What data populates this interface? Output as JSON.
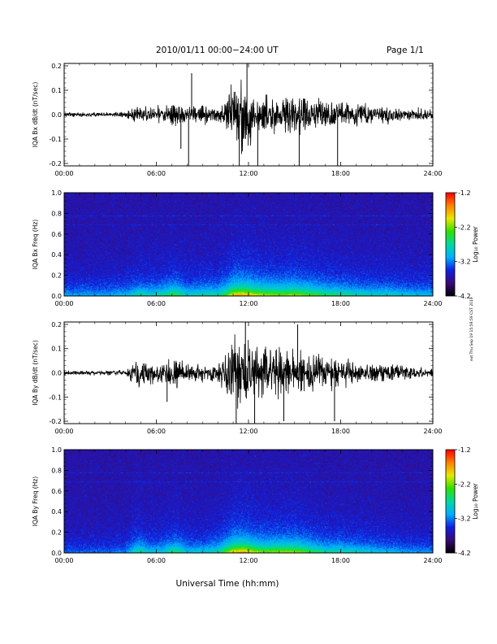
{
  "header": {
    "title": "2010/01/11  00:00−24:00 UT",
    "page": "Page 1/1"
  },
  "xaxis_title": "Universal Time (hh:mm)",
  "side_note": "ext Thu Sep 19 15:59:59 CST 2019",
  "colormap": [
    "#000000",
    "#3a0a78",
    "#1020e0",
    "#00b0ff",
    "#00d8a0",
    "#30e000",
    "#e8e800",
    "#ff8000",
    "#ff0000"
  ],
  "chart_data": [
    {
      "type": "line",
      "name": "bx-timeseries",
      "ylabel": "IQA Bx dB/dt (nT/sec)",
      "xlim": [
        0,
        24
      ],
      "ylim": [
        -0.21,
        0.21
      ],
      "x_ticks": [
        "00:00",
        "06:00",
        "12:00",
        "18:00",
        "24:00"
      ],
      "y_ticks": [
        "-0.2",
        "-0.1",
        "0.0",
        "0.1",
        "0.2"
      ],
      "y_tick_values": [
        -0.2,
        -0.1,
        0.0,
        0.1,
        0.2
      ],
      "envelope": {
        "hours": [
          0,
          2,
          4,
          4.8,
          5.5,
          6.3,
          7.2,
          8,
          9,
          10,
          10.6,
          11,
          11.5,
          12,
          12.5,
          13,
          14,
          15,
          16,
          17,
          18,
          19,
          20,
          21,
          22,
          23,
          24
        ],
        "amplitude": [
          0.012,
          0.012,
          0.018,
          0.05,
          0.04,
          0.05,
          0.08,
          0.04,
          0.05,
          0.05,
          0.09,
          0.2,
          0.21,
          0.18,
          0.14,
          0.12,
          0.11,
          0.12,
          0.1,
          0.08,
          0.07,
          0.06,
          0.05,
          0.05,
          0.04,
          0.035,
          0.03
        ]
      },
      "spikes": [
        {
          "hour": 7.6,
          "value": -0.14
        },
        {
          "hour": 8.1,
          "value": -0.22
        },
        {
          "hour": 8.3,
          "value": 0.17
        },
        {
          "hour": 11.4,
          "value": -0.22
        },
        {
          "hour": 11.9,
          "value": 0.22
        },
        {
          "hour": 12.6,
          "value": -0.22
        },
        {
          "hour": 15.3,
          "value": -0.21
        },
        {
          "hour": 17.8,
          "value": -0.21
        }
      ]
    },
    {
      "type": "heatmap",
      "name": "bx-spectrogram",
      "ylabel": "IQA Bx Freq (Hz)",
      "xlim": [
        0,
        24
      ],
      "ylim": [
        0,
        1.0
      ],
      "x_ticks": [
        "00:00",
        "06:00",
        "12:00",
        "18:00",
        "24:00"
      ],
      "y_ticks": [
        "0.0",
        "0.2",
        "0.4",
        "0.6",
        "0.8",
        "1.0"
      ],
      "y_tick_values": [
        0.0,
        0.2,
        0.4,
        0.6,
        0.8,
        1.0
      ],
      "colorbar": {
        "label": "Log₁₀ Power",
        "range": [
          -4.2,
          -1.2
        ],
        "ticks": [
          "-1.2",
          "-2.2",
          "-3.2",
          "-4.2"
        ],
        "tick_values": [
          -1.2,
          -2.2,
          -3.2,
          -4.2
        ]
      },
      "activity": {
        "hours": [
          0,
          2,
          4,
          4.8,
          5.5,
          6.3,
          7.2,
          8,
          9,
          10,
          10.6,
          11,
          11.5,
          12,
          12.5,
          13,
          14,
          15,
          16,
          17,
          18,
          19,
          20,
          21,
          22,
          23,
          24
        ],
        "level": [
          0.3,
          0.3,
          0.35,
          0.5,
          0.45,
          0.5,
          0.65,
          0.45,
          0.5,
          0.5,
          0.7,
          0.95,
          1.0,
          0.95,
          0.85,
          0.8,
          0.75,
          0.8,
          0.7,
          0.6,
          0.55,
          0.5,
          0.45,
          0.45,
          0.4,
          0.38,
          0.35
        ]
      }
    },
    {
      "type": "line",
      "name": "by-timeseries",
      "ylabel": "IQA By dB/dt (nT/sec)",
      "xlim": [
        0,
        24
      ],
      "ylim": [
        -0.21,
        0.21
      ],
      "x_ticks": [
        "00:00",
        "06:00",
        "12:00",
        "18:00",
        "24:00"
      ],
      "y_ticks": [
        "-0.2",
        "-0.1",
        "0.0",
        "0.1",
        "0.2"
      ],
      "y_tick_values": [
        -0.2,
        -0.1,
        0.0,
        0.1,
        0.2
      ],
      "envelope": {
        "hours": [
          0,
          2,
          4,
          4.8,
          5.5,
          6.3,
          7.2,
          8,
          9,
          10,
          10.6,
          11,
          11.5,
          12,
          12.5,
          13,
          14,
          15,
          16,
          17,
          18,
          19,
          20,
          21,
          22,
          23,
          24
        ],
        "amplitude": [
          0.012,
          0.012,
          0.015,
          0.09,
          0.07,
          0.05,
          0.1,
          0.05,
          0.05,
          0.06,
          0.12,
          0.22,
          0.22,
          0.2,
          0.15,
          0.13,
          0.14,
          0.15,
          0.12,
          0.1,
          0.08,
          0.06,
          0.05,
          0.045,
          0.04,
          0.03,
          0.025
        ]
      },
      "spikes": [
        {
          "hour": 11.2,
          "value": -0.22
        },
        {
          "hour": 11.8,
          "value": 0.22
        },
        {
          "hour": 12.4,
          "value": -0.22
        },
        {
          "hour": 14.3,
          "value": -0.2
        },
        {
          "hour": 15.2,
          "value": 0.2
        },
        {
          "hour": 17.6,
          "value": -0.2
        },
        {
          "hour": 6.7,
          "value": -0.12
        }
      ]
    },
    {
      "type": "heatmap",
      "name": "by-spectrogram",
      "ylabel": "IQA By Freq (Hz)",
      "xlim": [
        0,
        24
      ],
      "ylim": [
        0,
        1.0
      ],
      "x_ticks": [
        "00:00",
        "06:00",
        "12:00",
        "18:00",
        "24:00"
      ],
      "y_ticks": [
        "0.0",
        "0.2",
        "0.4",
        "0.6",
        "0.8",
        "1.0"
      ],
      "y_tick_values": [
        0.0,
        0.2,
        0.4,
        0.6,
        0.8,
        1.0
      ],
      "colorbar": {
        "label": "Log₁₀ Power",
        "range": [
          -4.2,
          -1.2
        ],
        "ticks": [
          "-1.2",
          "-2.2",
          "-3.2",
          "-4.2"
        ],
        "tick_values": [
          -1.2,
          -2.2,
          -3.2,
          -4.2
        ]
      },
      "activity": {
        "hours": [
          0,
          2,
          4,
          4.8,
          5.5,
          6.3,
          7.2,
          8,
          9,
          10,
          10.6,
          11,
          11.5,
          12,
          12.5,
          13,
          14,
          15,
          16,
          17,
          18,
          19,
          20,
          21,
          22,
          23,
          24
        ],
        "level": [
          0.2,
          0.2,
          0.25,
          0.55,
          0.4,
          0.4,
          0.6,
          0.4,
          0.4,
          0.5,
          0.75,
          0.95,
          1.0,
          0.95,
          0.8,
          0.75,
          0.8,
          0.8,
          0.65,
          0.5,
          0.5,
          0.45,
          0.4,
          0.35,
          0.3,
          0.28,
          0.25
        ]
      }
    }
  ]
}
